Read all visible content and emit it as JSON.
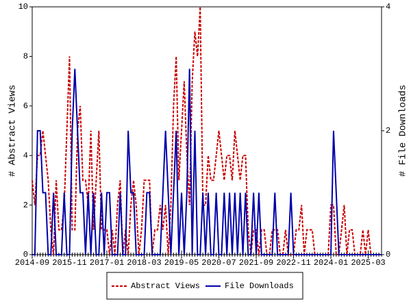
{
  "chart_data": {
    "type": "line",
    "x": [
      "2014-09",
      "2014-10",
      "2014-11",
      "2014-12",
      "2015-01",
      "2015-02",
      "2015-03",
      "2015-04",
      "2015-05",
      "2015-06",
      "2015-07",
      "2015-08",
      "2015-09",
      "2015-10",
      "2015-11",
      "2015-12",
      "2016-01",
      "2016-02",
      "2016-03",
      "2016-04",
      "2016-05",
      "2016-06",
      "2016-07",
      "2016-08",
      "2016-09",
      "2016-10",
      "2016-11",
      "2016-12",
      "2017-01",
      "2017-02",
      "2017-03",
      "2017-04",
      "2017-05",
      "2017-06",
      "2017-07",
      "2017-08",
      "2017-09",
      "2017-10",
      "2017-11",
      "2017-12",
      "2018-01",
      "2018-02",
      "2018-03",
      "2018-04",
      "2018-05",
      "2018-06",
      "2018-07",
      "2018-08",
      "2018-09",
      "2018-10",
      "2018-11",
      "2018-12",
      "2019-01",
      "2019-02",
      "2019-03",
      "2019-04",
      "2019-05",
      "2019-06",
      "2019-07",
      "2019-08",
      "2019-09",
      "2019-10",
      "2019-11",
      "2019-12",
      "2020-01",
      "2020-02",
      "2020-03",
      "2020-04",
      "2020-05",
      "2020-06",
      "2020-07",
      "2020-08",
      "2020-09",
      "2020-10",
      "2020-11",
      "2020-12",
      "2021-01",
      "2021-02",
      "2021-03",
      "2021-04",
      "2021-05",
      "2021-06",
      "2021-07",
      "2021-08",
      "2021-09",
      "2021-10",
      "2021-11",
      "2021-12",
      "2022-01",
      "2022-02",
      "2022-03",
      "2022-04",
      "2022-05",
      "2022-06",
      "2022-07",
      "2022-08",
      "2022-09",
      "2022-10",
      "2022-11",
      "2022-12",
      "2023-01",
      "2023-02",
      "2023-03",
      "2023-04",
      "2023-05",
      "2023-06",
      "2023-07",
      "2023-08",
      "2023-09",
      "2023-10",
      "2023-11",
      "2023-12",
      "2024-01",
      "2024-02",
      "2024-03",
      "2024-04",
      "2024-05",
      "2024-06",
      "2024-07",
      "2024-08",
      "2024-09",
      "2024-10",
      "2024-11",
      "2024-12",
      "2025-01",
      "2025-02",
      "2025-03",
      "2025-04",
      "2025-05",
      "2025-06",
      "2025-07",
      "2025-08"
    ],
    "xticks": [
      "2014-09",
      "2015-11",
      "2017-01",
      "2018-03",
      "2019-05",
      "2020-07",
      "2021-09",
      "2022-11",
      "2024-01",
      "2025-03"
    ],
    "ylabel": "# Abstract Views",
    "y2label": "# File Downloads",
    "ylim": [
      0,
      10
    ],
    "yticks": [
      0,
      2,
      4,
      6,
      8,
      10
    ],
    "y2lim": [
      0,
      4
    ],
    "y2ticks": [
      0,
      2,
      4
    ],
    "legend": "bottom",
    "series": [
      {
        "name": "Abstract Views",
        "color": "#cc0000",
        "dash": true,
        "axis": "y",
        "values": [
          3,
          2,
          4,
          4,
          5,
          4,
          3,
          1,
          0,
          3,
          1,
          1,
          2,
          5,
          8,
          1,
          1,
          5,
          6,
          3,
          3,
          2,
          5,
          1,
          3,
          5,
          1,
          1,
          1,
          0,
          1,
          0,
          2,
          3,
          0,
          1,
          0,
          2,
          3,
          2,
          0,
          1,
          3,
          3,
          3,
          0,
          1,
          1,
          2,
          1,
          2,
          0,
          2,
          6,
          8,
          3,
          5,
          7,
          4,
          2,
          7,
          9,
          8,
          10,
          2,
          2,
          4,
          3,
          3,
          4,
          5,
          4,
          3,
          4,
          4,
          3,
          5,
          4,
          3,
          4,
          4,
          1,
          0,
          1,
          1,
          0,
          1,
          1,
          0,
          0,
          1,
          1,
          1,
          0,
          0,
          1,
          0,
          0,
          0,
          1,
          1,
          2,
          0,
          1,
          1,
          1,
          0,
          0,
          0,
          0,
          0,
          0,
          2,
          2,
          0,
          0,
          1,
          2,
          0,
          1,
          1,
          0,
          0,
          0,
          1,
          0,
          1,
          0,
          0,
          0,
          0,
          0
        ]
      },
      {
        "name": "File Downloads",
        "color": "#0000aa",
        "dash": false,
        "axis": "y2",
        "values": [
          0,
          0,
          2,
          2,
          1,
          1,
          0,
          0,
          1,
          0,
          0,
          0,
          1,
          0,
          0,
          2,
          3,
          2,
          1,
          1,
          0,
          1,
          0,
          1,
          0,
          0,
          1,
          0,
          1,
          1,
          0,
          0,
          0,
          1,
          0,
          0,
          2,
          1,
          1,
          0,
          0,
          0,
          0,
          1,
          1,
          0,
          0,
          0,
          0,
          1,
          2,
          1,
          0,
          1,
          2,
          0,
          1,
          0,
          1,
          3,
          0,
          2,
          0,
          0,
          1,
          0,
          1,
          0,
          0,
          1,
          0,
          0,
          1,
          0,
          1,
          0,
          1,
          0,
          1,
          0,
          1,
          0,
          0,
          1,
          0,
          1,
          0,
          0,
          0,
          0,
          0,
          1,
          0,
          0,
          0,
          0,
          0,
          1,
          0,
          0,
          0,
          0,
          0,
          0,
          0,
          0,
          0,
          0,
          0,
          0,
          0,
          0,
          0,
          2,
          1,
          0,
          0,
          0,
          0,
          0,
          0,
          0,
          0,
          0,
          0,
          0,
          0,
          0,
          0,
          0,
          0,
          0
        ]
      }
    ]
  }
}
